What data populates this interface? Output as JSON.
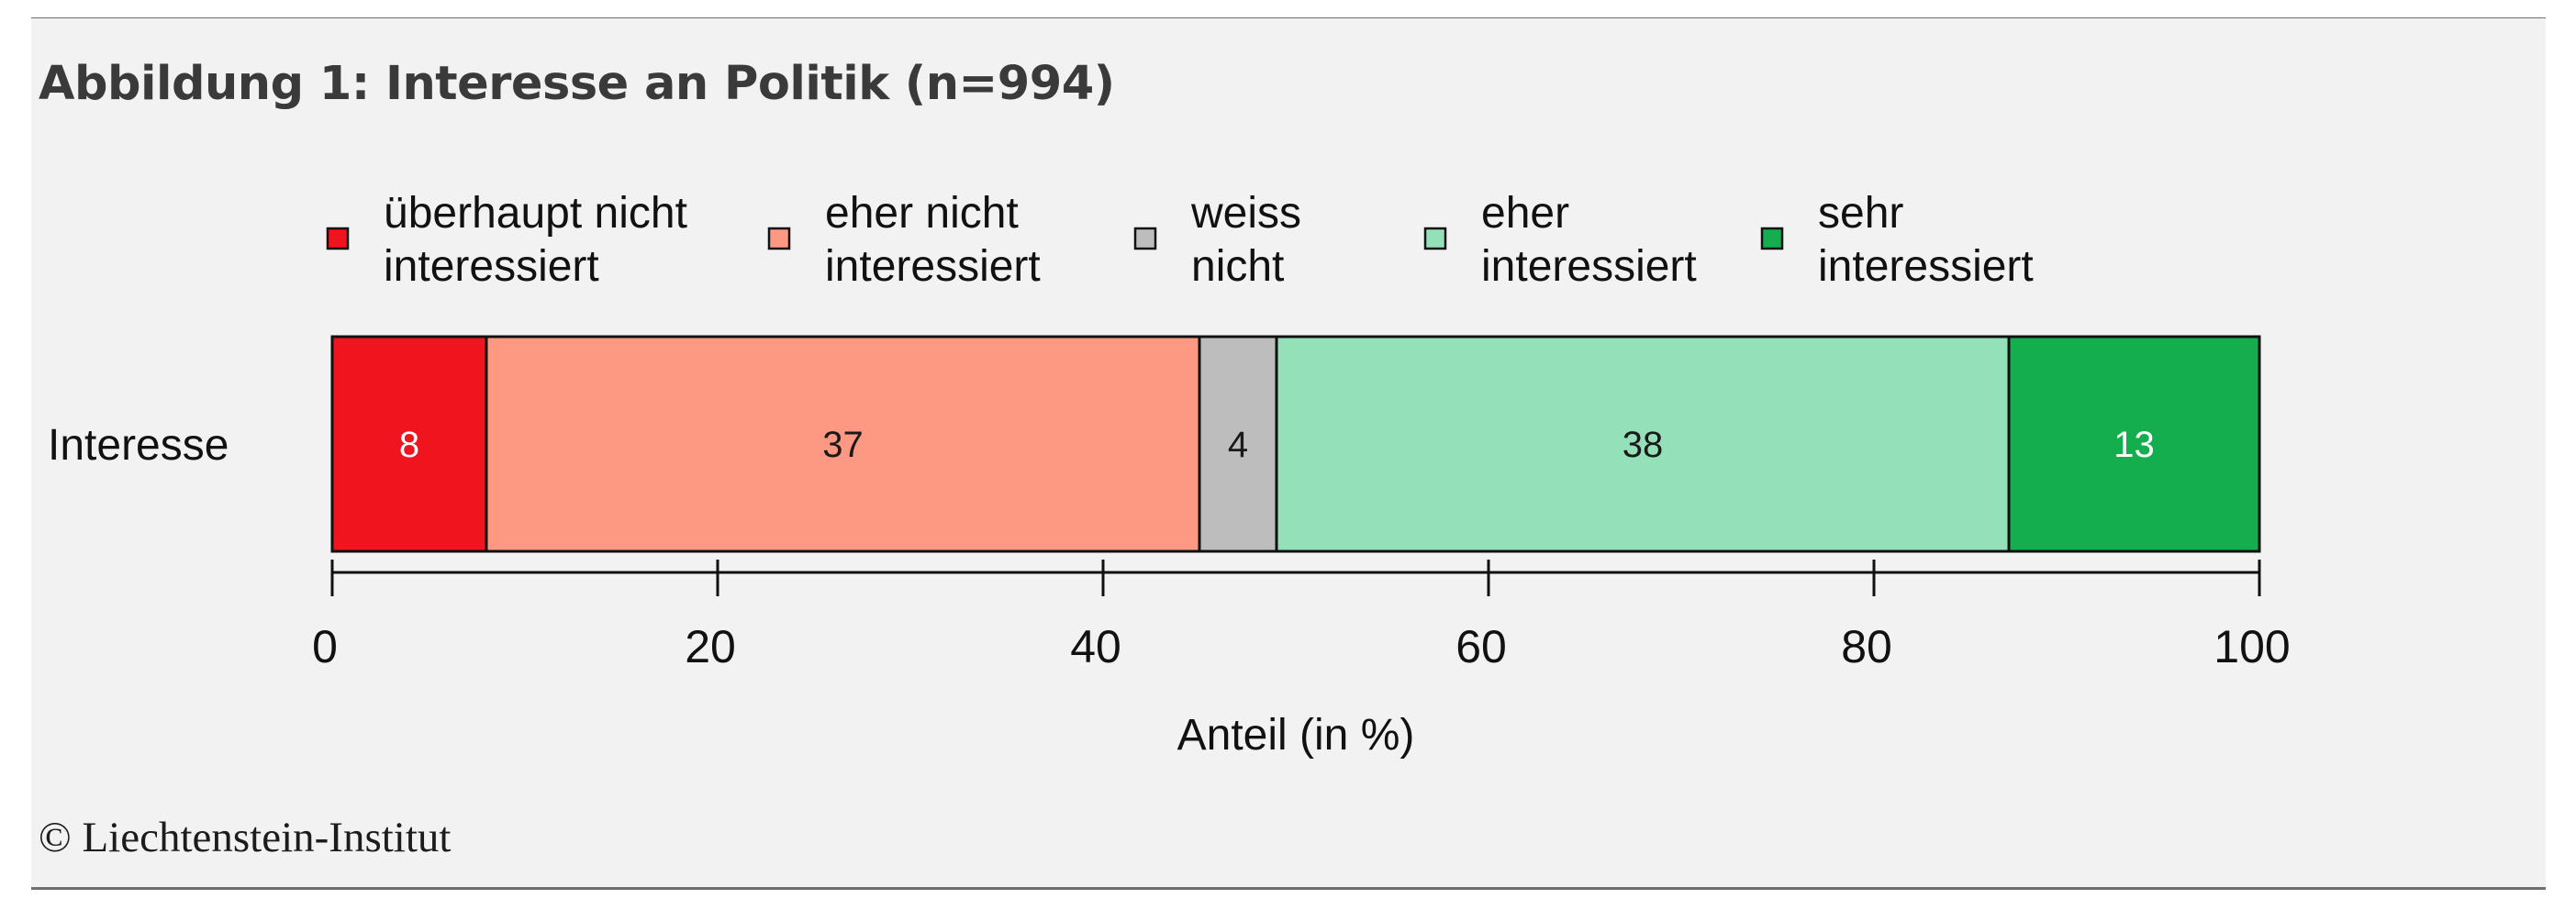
{
  "figure": {
    "title": "Abbildung 1: Interesse an Politik (n=994)",
    "copyright": "© Liechtenstein-Institut"
  },
  "chart_data": {
    "type": "bar",
    "orientation": "horizontal",
    "stacked": true,
    "categories": [
      "Interesse"
    ],
    "series": [
      {
        "name": "überhaupt nicht interessiert",
        "name_lines": [
          "überhaupt nicht",
          "interessiert"
        ],
        "values": [
          8
        ],
        "color": "#f0141e",
        "label_color": "#ffffff"
      },
      {
        "name": "eher nicht interessiert",
        "name_lines": [
          "eher nicht",
          "interessiert"
        ],
        "values": [
          37
        ],
        "color": "#fd9983",
        "label_color": "#1a1a1a"
      },
      {
        "name": "weiss nicht",
        "name_lines": [
          "weiss",
          "nicht"
        ],
        "values": [
          4
        ],
        "color": "#bdbdbd",
        "label_color": "#1a1a1a"
      },
      {
        "name": "eher interessiert",
        "name_lines": [
          "eher",
          "interessiert"
        ],
        "values": [
          38
        ],
        "color": "#94e0b9",
        "label_color": "#1a1a1a"
      },
      {
        "name": "sehr interessiert",
        "name_lines": [
          "sehr",
          "interessiert"
        ],
        "values": [
          13
        ],
        "color": "#14ae4f",
        "label_color": "#ffffff"
      }
    ],
    "xlim": [
      0,
      100
    ],
    "xticks": [
      0,
      20,
      40,
      60,
      80,
      100
    ],
    "xlabel": "Anteil (in %)",
    "ylabel": "",
    "grid": false,
    "legend": "top"
  }
}
